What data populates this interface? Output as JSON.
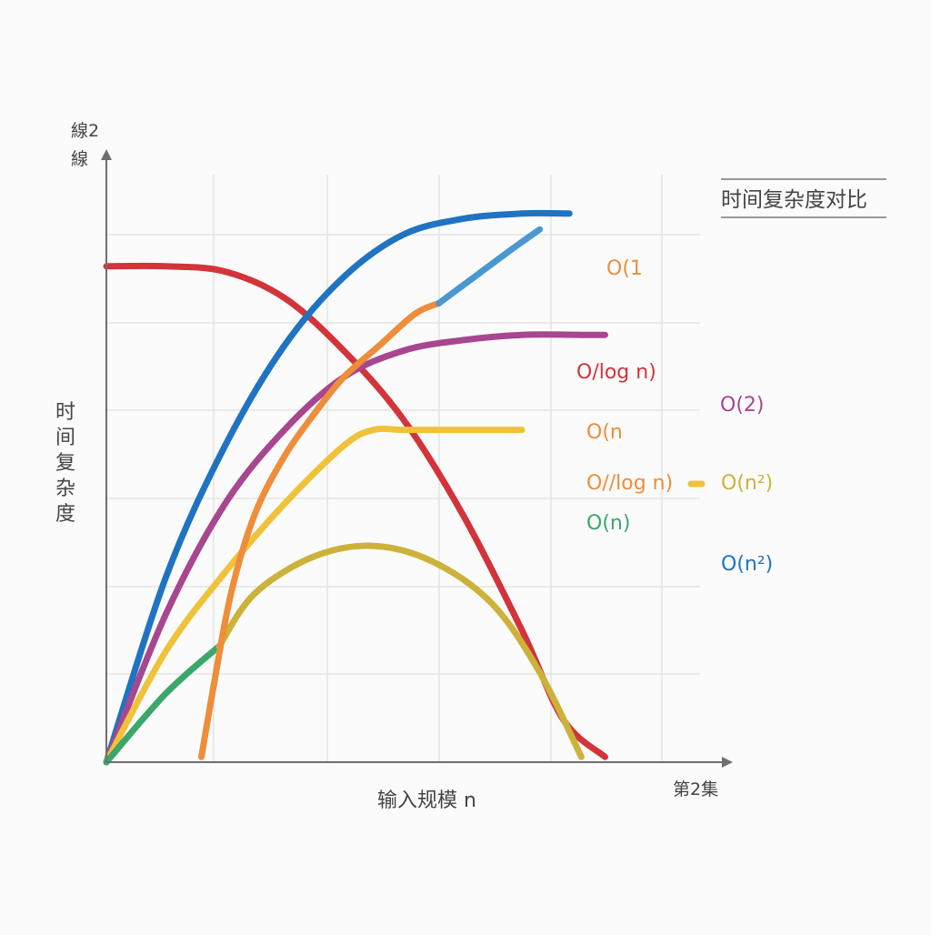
{
  "chart_data": {
    "type": "line",
    "title": "时间复杂度对比",
    "xlabel": "输入规模 n",
    "ylabel": "时间复杂度",
    "y_axis_top_label": [
      "線2",
      "線"
    ],
    "x_axis_end_label": "第2集",
    "grid": true,
    "legend_position": "right",
    "xlim": [
      0,
      10
    ],
    "ylim": [
      0,
      10
    ],
    "series": [
      {
        "color": "#d2343a",
        "x": [
          0,
          1,
          2,
          3,
          4,
          5,
          6,
          7,
          7.7,
          8.4
        ],
        "y": [
          9.4,
          9.4,
          9.3,
          8.8,
          7.8,
          6.5,
          4.7,
          2.5,
          0.8,
          0.1
        ]
      },
      {
        "color": "#1f73c2",
        "x": [
          0,
          1,
          2,
          3,
          4,
          5,
          6,
          7,
          7.8
        ],
        "y": [
          0,
          3.5,
          6.0,
          7.9,
          9.2,
          10.0,
          10.3,
          10.4,
          10.4
        ]
      },
      {
        "color": "#a8468f",
        "x": [
          0,
          1,
          2,
          3,
          4,
          5,
          6,
          7,
          8,
          8.4
        ],
        "y": [
          0,
          2.8,
          4.9,
          6.3,
          7.3,
          7.8,
          8.0,
          8.1,
          8.1,
          8.1
        ]
      },
      {
        "color": "#f0c23a",
        "x": [
          0,
          1,
          2,
          3,
          4,
          4.5,
          5,
          6,
          7
        ],
        "y": [
          0,
          2.1,
          3.6,
          4.9,
          6.0,
          6.3,
          6.3,
          6.3,
          6.3
        ]
      },
      {
        "color": "#3ba76a",
        "x": [
          0,
          1,
          1.9
        ],
        "y": [
          0,
          1.3,
          2.2
        ]
      },
      {
        "color": "#ccb23a",
        "x": [
          1.9,
          2.5,
          3.5,
          4.5,
          5.5,
          6.5,
          7.3,
          8.0
        ],
        "y": [
          2.2,
          3.2,
          3.9,
          4.1,
          3.8,
          3.0,
          1.7,
          0.1
        ]
      },
      {
        "color": "#ee8d3a",
        "x": [
          1.6,
          1.8,
          2.1,
          2.5,
          3,
          3.5,
          4,
          4.6,
          5.2,
          5.6
        ],
        "y": [
          0.1,
          1.4,
          3.2,
          4.7,
          5.8,
          6.6,
          7.3,
          7.9,
          8.5,
          8.7
        ]
      },
      {
        "color": "#4a97d2",
        "x": [
          5.6,
          6.2,
          6.8,
          7.3
        ],
        "y": [
          8.7,
          9.2,
          9.7,
          10.1
        ]
      }
    ],
    "annotations": [
      {
        "text": "O(1",
        "color": "#ee8d3a"
      },
      {
        "text": "O/log n)",
        "color": "#d2343a"
      },
      {
        "text": "O(2)",
        "color": "#a8468f"
      },
      {
        "text": "O(n",
        "color": "#ee8d3a"
      },
      {
        "text": "O//log n)",
        "color": "#ee8d3a"
      },
      {
        "text": "O(n²)",
        "color": "#ccb23a"
      },
      {
        "text": "O(n)",
        "color": "#3ba76a"
      },
      {
        "text": "O(n²)",
        "color": "#1f73c2"
      }
    ],
    "colors": {
      "axis": "#6f6f6f",
      "grid": "#e4e4e4",
      "text": "#444444"
    }
  }
}
